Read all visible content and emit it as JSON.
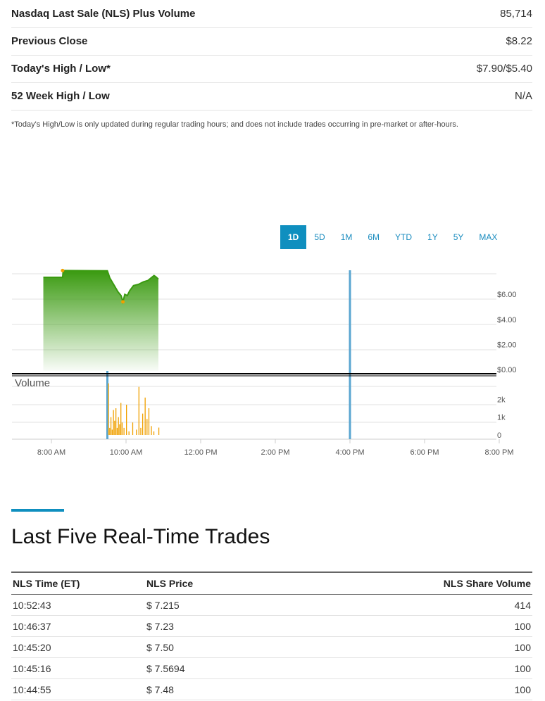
{
  "summary": [
    {
      "label": "Nasdaq Last Sale (NLS) Plus Volume",
      "value": "85,714"
    },
    {
      "label": "Previous Close",
      "value": "$8.22"
    },
    {
      "label": "Today's High / Low*",
      "value": "$7.90/$5.40"
    },
    {
      "label": "52 Week High / Low",
      "value": "N/A"
    }
  ],
  "footnote": "*Today's High/Low is only updated during regular trading hours; and does not include trades occurring in pre-market or after-hours.",
  "ranges": [
    "1D",
    "5D",
    "1M",
    "6M",
    "YTD",
    "1Y",
    "5Y",
    "MAX"
  ],
  "selected_range": "1D",
  "colors": {
    "accent": "#0f8fbf",
    "price_line": "#3a9a10",
    "volume_bars": "#f0a000",
    "market_marker": "#5aa6d0"
  },
  "chart_data": {
    "type": "area",
    "x_axis": {
      "ticks": [
        "8:00 AM",
        "10:00 AM",
        "12:00 PM",
        "2:00 PM",
        "4:00 PM",
        "6:00 PM",
        "8:00 PM"
      ],
      "range": [
        "7:00 AM",
        "8:00 PM"
      ]
    },
    "price": {
      "y_ticks": [
        "$0.00",
        "$2.00",
        "$4.00",
        "$6.00"
      ],
      "ylim": [
        0,
        7.9
      ],
      "points": [
        [
          "7:47",
          7.36
        ],
        [
          "8:18",
          7.36
        ],
        [
          "8:19",
          7.9
        ],
        [
          "9:30",
          7.88
        ],
        [
          "9:34",
          7.3
        ],
        [
          "9:40",
          6.8
        ],
        [
          "9:47",
          6.2
        ],
        [
          "9:52",
          5.9
        ],
        [
          "9:55",
          5.4
        ],
        [
          "9:58",
          6.0
        ],
        [
          "10:02",
          5.9
        ],
        [
          "10:06",
          6.3
        ],
        [
          "10:12",
          6.7
        ],
        [
          "10:20",
          6.8
        ],
        [
          "10:28",
          7.0
        ],
        [
          "10:35",
          7.1
        ],
        [
          "10:40",
          7.3
        ],
        [
          "10:45",
          7.5
        ],
        [
          "10:48",
          7.4
        ],
        [
          "10:52",
          7.215
        ]
      ],
      "markers": [
        [
          "8:18",
          7.9
        ],
        [
          "9:55",
          5.4
        ]
      ]
    },
    "volume": {
      "title": "Volume",
      "y_ticks": [
        "0",
        "1k",
        "2k"
      ],
      "ylim": [
        0,
        2900
      ],
      "bars": [
        [
          "9:31",
          2900
        ],
        [
          "9:33",
          400
        ],
        [
          "9:35",
          1000
        ],
        [
          "9:37",
          300
        ],
        [
          "9:39",
          1400
        ],
        [
          "9:41",
          800
        ],
        [
          "9:43",
          1500
        ],
        [
          "9:45",
          400
        ],
        [
          "9:47",
          1000
        ],
        [
          "9:49",
          600
        ],
        [
          "9:51",
          1800
        ],
        [
          "9:53",
          700
        ],
        [
          "9:56",
          400
        ],
        [
          "10:00",
          1700
        ],
        [
          "10:04",
          200
        ],
        [
          "10:10",
          700
        ],
        [
          "10:16",
          300
        ],
        [
          "10:20",
          2700
        ],
        [
          "10:23",
          400
        ],
        [
          "10:26",
          1200
        ],
        [
          "10:30",
          2100
        ],
        [
          "10:33",
          900
        ],
        [
          "10:36",
          1500
        ],
        [
          "10:40",
          500
        ],
        [
          "10:44",
          200
        ],
        [
          "10:52",
          414
        ]
      ]
    },
    "market_markers": [
      "9:30",
      "4:00 PM"
    ]
  },
  "trades": {
    "title": "Last Five Real-Time Trades",
    "columns": [
      "NLS Time (ET)",
      "NLS Price",
      "NLS Share Volume"
    ],
    "rows": [
      [
        "10:52:43",
        "$ 7.215",
        "414"
      ],
      [
        "10:46:37",
        "$ 7.23",
        "100"
      ],
      [
        "10:45:20",
        "$ 7.50",
        "100"
      ],
      [
        "10:45:16",
        "$ 7.5694",
        "100"
      ],
      [
        "10:44:55",
        "$ 7.48",
        "100"
      ]
    ]
  }
}
